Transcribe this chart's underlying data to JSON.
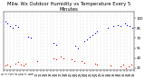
{
  "title": "Milw. Wx Outdoor Humidity vs Temperature Every 5 Minutes",
  "background_color": "#ffffff",
  "blue_color": "#0000ff",
  "red_color": "#ff0000",
  "grid_color": "#bbbbbb",
  "ylim": [
    22,
    110
  ],
  "yticks": [
    25,
    40,
    55,
    70,
    85,
    100
  ],
  "title_fontsize": 3.8,
  "tick_fontsize": 2.8,
  "marker_size": 0.8,
  "blue_x": [
    0.01,
    0.03,
    0.05,
    0.07,
    0.09,
    0.11,
    0.19,
    0.21,
    0.38,
    0.4,
    0.55,
    0.57,
    0.62,
    0.64,
    0.66,
    0.68,
    0.7,
    0.72,
    0.8,
    0.84,
    0.88,
    0.9,
    0.93,
    0.95,
    0.97,
    0.99
  ],
  "blue_y": [
    95,
    92,
    88,
    85,
    90,
    87,
    72,
    70,
    62,
    60,
    58,
    55,
    65,
    68,
    72,
    75,
    78,
    80,
    85,
    88,
    90,
    88,
    92,
    90,
    88,
    85
  ],
  "red_x": [
    0.01,
    0.03,
    0.05,
    0.09,
    0.11,
    0.13,
    0.15,
    0.17,
    0.26,
    0.38,
    0.4,
    0.44,
    0.46,
    0.52,
    0.54,
    0.6,
    0.62,
    0.7,
    0.72,
    0.82,
    0.9,
    0.92,
    0.94,
    0.96,
    0.98
  ],
  "red_y": [
    28,
    30,
    27,
    32,
    34,
    30,
    28,
    32,
    36,
    40,
    38,
    42,
    40,
    38,
    36,
    35,
    33,
    32,
    30,
    28,
    27,
    30,
    25,
    27,
    30
  ],
  "n_xticks": 40,
  "n_gridlines": 40
}
